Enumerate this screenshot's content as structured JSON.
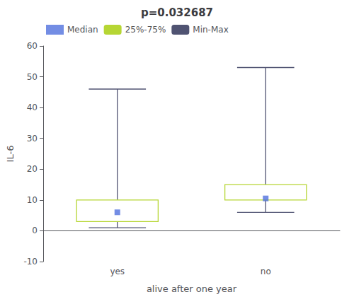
{
  "chart_data": {
    "type": "box",
    "title": "p=0.032687",
    "xlabel": "alive after one year",
    "ylabel": "IL-6",
    "categories": [
      "yes",
      "no"
    ],
    "series": [
      {
        "name": "Median",
        "type": "scatter",
        "values": [
          6,
          10.5
        ]
      },
      {
        "name": "25%-75%",
        "type": "box",
        "low": [
          3,
          10
        ],
        "high": [
          10,
          15
        ]
      },
      {
        "name": "Min-Max",
        "type": "range",
        "low": [
          1,
          6
        ],
        "high": [
          46,
          53
        ]
      }
    ],
    "ylim": [
      -10,
      60
    ],
    "yticks": [
      -10,
      0,
      10,
      20,
      30,
      40,
      50,
      60
    ],
    "grid": false,
    "legend": "upper left"
  }
}
